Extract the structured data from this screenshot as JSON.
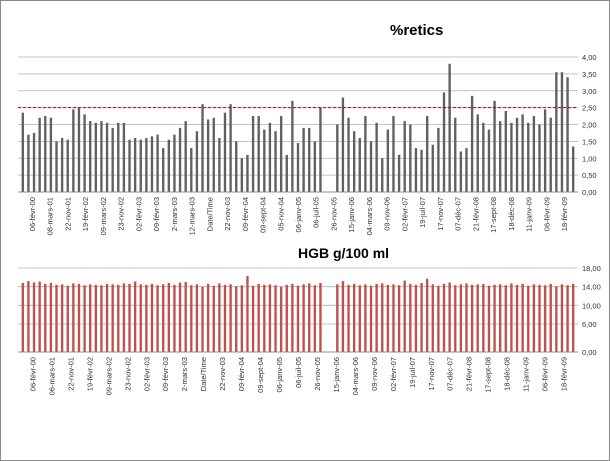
{
  "chart_data": [
    {
      "type": "bar",
      "title": "%retics",
      "ylim": [
        0,
        4
      ],
      "yticks": [
        "0,00",
        "0,50",
        "1,00",
        "1,50",
        "2,00",
        "2,50",
        "3,00",
        "3,50",
        "4,00"
      ],
      "reference_line": 2.5,
      "grid": true,
      "colors": {
        "bar": "#606060",
        "reference": "#c00000",
        "grid": "#b0b0b0"
      },
      "gap_after": 53,
      "xlabels": [
        "06-févr-00",
        "08-mars-01",
        "22-nov-01",
        "19-févr-02",
        "09-mars-02",
        "23-nov-02",
        "02-févr-03",
        "09-févr-03",
        "2-mars-03",
        "12-mars-03",
        "Date/Time",
        "22-nov-03",
        "09-févr-04",
        "09-sept-04",
        "05-nov-04",
        "06-janv-05",
        "06-juil-05",
        "26-nov-05",
        "15-janv-06",
        "04-mars-06",
        "09-nov-06",
        "02-févr-07",
        "19-juil-07",
        "17-nov-07",
        "07-déc-07",
        "21-févr-08",
        "17-sept-08",
        "18-déc-08",
        "11-janv-09",
        "06-févr-09",
        "18-févr-09"
      ],
      "values": [
        2.35,
        1.7,
        1.75,
        2.2,
        2.25,
        2.2,
        1.5,
        1.6,
        1.55,
        2.45,
        2.5,
        2.3,
        2.1,
        2.05,
        2.1,
        2.05,
        1.9,
        2.05,
        2.05,
        1.55,
        1.6,
        1.55,
        1.6,
        1.65,
        1.7,
        1.3,
        1.55,
        1.7,
        1.9,
        2.1,
        1.3,
        1.8,
        2.6,
        2.15,
        2.2,
        1.6,
        2.35,
        2.6,
        1.5,
        1.0,
        1.1,
        2.25,
        2.25,
        1.85,
        2.05,
        1.8,
        2.25,
        1.1,
        2.7,
        1.45,
        1.9,
        1.9,
        1.5,
        2.5,
        2.0,
        2.8,
        2.2,
        1.8,
        1.6,
        2.25,
        1.5,
        2.05,
        1.0,
        1.85,
        2.25,
        1.1,
        2.1,
        2.0,
        1.3,
        1.25,
        2.25,
        1.4,
        1.9,
        2.95,
        3.8,
        2.2,
        1.2,
        1.3,
        2.85,
        2.3,
        2.05,
        1.85,
        2.7,
        2.1,
        2.4,
        2.05,
        2.2,
        2.3,
        2.05,
        2.25,
        2.0,
        2.45,
        2.2,
        3.55,
        3.55,
        3.4,
        1.35
      ]
    },
    {
      "type": "bar",
      "title": "HGB g/100 ml",
      "ylim": [
        0,
        18
      ],
      "yticks": [
        "0,00",
        "6,00",
        "10,00",
        "14,00",
        "18,00"
      ],
      "ytick_values": [
        0,
        6,
        10,
        14,
        18
      ],
      "grid": true,
      "colors": {
        "bar": "#c0504d",
        "grid": "#b0b0b0"
      },
      "gap_after": 53,
      "xlabels": [
        "06-févr-00",
        "06-mars-01",
        "22-nov-01",
        "19-févr-02",
        "09-mars-02",
        "23-nov-02",
        "02-févr-03",
        "09-févr-03",
        "2-mars-03",
        "Date/Time",
        "22-nov-03",
        "09-févr-04",
        "09-sept-04",
        "06-janv-05",
        "06-juil-05",
        "26-nov-05",
        "15-janv-06",
        "04-mars-06",
        "09-nov-06",
        "02-févr-07",
        "19-juil-07",
        "17-nov-07",
        "07-déc-07",
        "21-févr-08",
        "17-sept-08",
        "18-déc-08",
        "11-janv-09",
        "06-févr-09",
        "18-févr-09"
      ],
      "values": [
        14.8,
        15.2,
        14.9,
        15.1,
        14.6,
        14.8,
        14.4,
        14.5,
        14.2,
        14.7,
        14.6,
        14.3,
        14.5,
        14.4,
        14.3,
        14.6,
        14.5,
        14.4,
        14.7,
        14.6,
        15.1,
        14.5,
        14.4,
        14.6,
        14.3,
        14.5,
        14.8,
        14.4,
        14.9,
        15.0,
        14.3,
        14.5,
        14.0,
        14.6,
        14.2,
        14.7,
        14.4,
        14.5,
        14.1,
        14.3,
        16.3,
        14.2,
        14.6,
        14.4,
        14.5,
        14.3,
        14.0,
        14.4,
        14.6,
        14.2,
        14.5,
        14.7,
        14.3,
        14.8,
        14.5,
        15.2,
        14.4,
        14.6,
        14.3,
        14.5,
        14.2,
        14.6,
        14.7,
        14.4,
        14.5,
        14.3,
        15.3,
        14.6,
        14.4,
        14.8,
        15.7,
        14.5,
        14.2,
        14.6,
        14.9,
        14.3,
        14.5,
        14.7,
        14.4,
        14.5,
        14.6,
        14.2,
        14.4,
        14.5,
        14.3,
        14.7,
        14.4,
        14.6,
        14.2,
        14.5,
        14.4,
        14.3,
        14.6,
        14.1,
        14.5,
        14.3,
        14.6
      ]
    }
  ]
}
